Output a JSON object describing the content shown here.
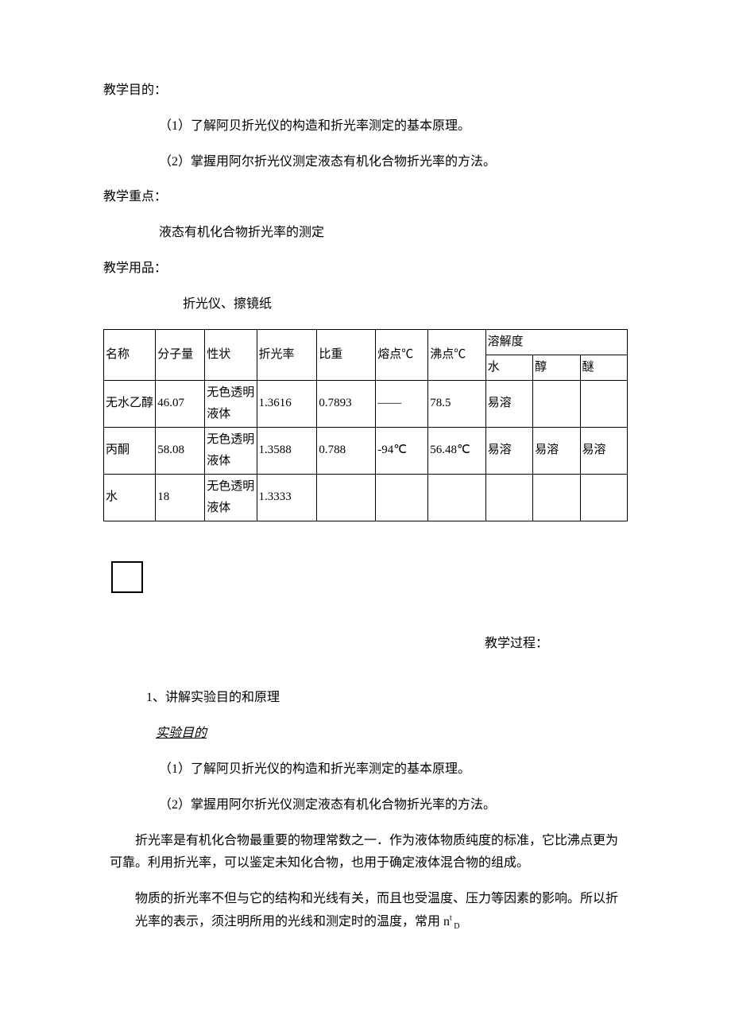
{
  "teaching_objective_label": "教学目的：",
  "objective_1": "（1）了解阿贝折光仪的构造和折光率测定的基本原理。",
  "objective_2": "（2）掌握用阿尔折光仪测定液态有机化合物折光率的方法。",
  "teaching_focus_label": "教学重点：",
  "teaching_focus_content": "液态有机化合物折光率的测定",
  "teaching_materials_label": "教学用品：",
  "teaching_materials_content": "折光仪、擦镜纸",
  "table": {
    "headers": {
      "name": "名称",
      "molecular_weight": "分子量",
      "properties": "性状",
      "refractive_index": "折光率",
      "specific_gravity": "比重",
      "melting_point": "熔点℃",
      "boiling_point": "沸点℃",
      "solubility": "溶解度",
      "water": "水",
      "alcohol": "醇",
      "ether": "醚"
    },
    "rows": [
      {
        "name": "无水乙醇",
        "mw": "46.07",
        "prop": "无色透明液体",
        "ri": "1.3616",
        "sg": "0.7893",
        "mp": "——",
        "bp": "78.5",
        "water": "易溶",
        "alcohol": "",
        "ether": ""
      },
      {
        "name": "丙酮",
        "mw": "58.08",
        "prop": "无色透明液体",
        "ri": "1.3588",
        "sg": "0.788",
        "mp": "-94℃",
        "bp": "56.48℃",
        "water": "易溶",
        "alcohol": "易溶",
        "ether": "易溶"
      },
      {
        "name": "水",
        "mw": "18",
        "prop": "无色透明液体",
        "ri": "1.3333",
        "sg": "",
        "mp": "",
        "bp": "",
        "water": "",
        "alcohol": "",
        "ether": ""
      }
    ]
  },
  "teaching_process_label": "教学过程：",
  "step_1_title": "1、讲解实验目的和原理",
  "experiment_purpose_label": "实验目的",
  "purpose_1": "（1）了解阿贝折光仪的构造和折光率测定的基本原理。",
  "purpose_2": "（2）掌握用阿尔折光仪测定液态有机化合物折光率的方法。",
  "paragraph_1": "折光率是有机化合物最重要的物理常数之一．作为液体物质纯度的标准，它比沸点更为可靠。利用折光率，可以鉴定未知化合物，也用于确定液体混合物的组成。",
  "paragraph_2_part1": "物质的折光率不但与它的结构和光线有关，而且也受温度、压力等因素的影响。所以折光率的表示，须注明所用的光线和测定时的温度，常用 n",
  "paragraph_2_sup": "t",
  "paragraph_2_sub": " D"
}
